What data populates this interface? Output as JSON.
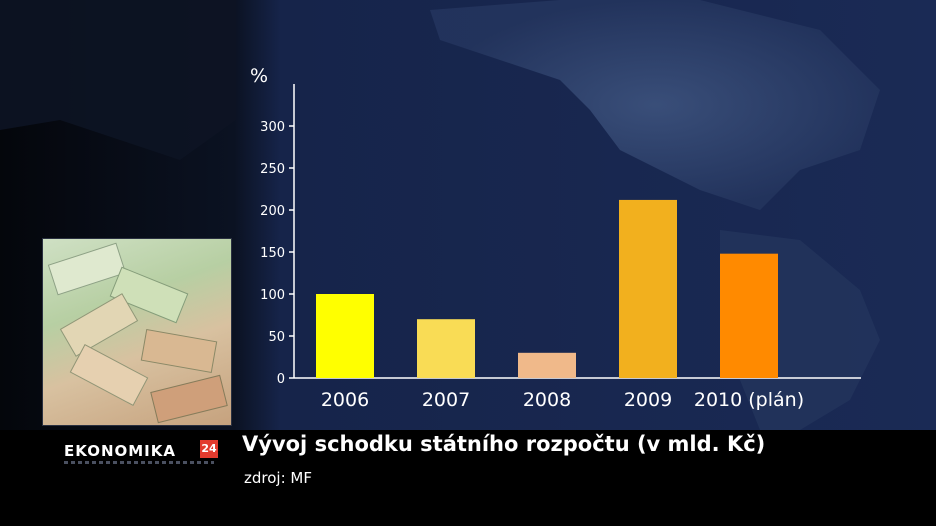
{
  "caption": {
    "title": "Vývoj schodku státního rozpočtu (v mld. Kč)",
    "source": "zdroj: MF"
  },
  "logo": {
    "text": "EKONOMIKA",
    "badge": "24"
  },
  "colors": {
    "axis": "#ffffff",
    "background": "#16244a"
  },
  "chart_data": {
    "type": "bar",
    "ylabel": "%",
    "ylim": [
      0,
      300
    ],
    "yticks": [
      0,
      50,
      100,
      150,
      200,
      250,
      300
    ],
    "categories": [
      "2006",
      "2007",
      "2008",
      "2009",
      "2010 (plán)"
    ],
    "values": [
      100,
      70,
      30,
      212,
      148
    ],
    "bar_colors": [
      "#ffff00",
      "#f9dc55",
      "#f0b98a",
      "#f2b01e",
      "#ff8a00"
    ],
    "grid": false,
    "legend": "none"
  }
}
